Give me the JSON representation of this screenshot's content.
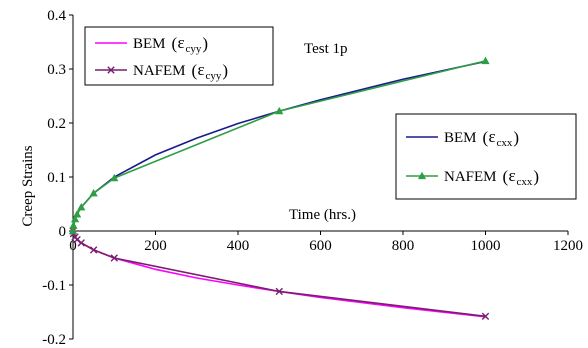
{
  "chart_data": {
    "type": "line",
    "title": "",
    "annotation": "Test 1p",
    "xlabel": "Time (hrs.)",
    "ylabel": "Creep Strains",
    "xlim": [
      0,
      1200
    ],
    "ylim": [
      -0.2,
      0.4
    ],
    "xticks": [
      0,
      200,
      400,
      600,
      800,
      1000,
      1200
    ],
    "yticks": [
      -0.2,
      -0.1,
      0,
      0.1,
      0.2,
      0.3,
      0.4
    ],
    "xtick_labels": [
      "0",
      "200",
      "400",
      "600",
      "800",
      "1000",
      "1200"
    ],
    "ytick_labels": [
      "-0.2",
      "-0.1",
      "0",
      "0.1",
      "0.2",
      "0.3",
      "0.4"
    ],
    "grid": false,
    "legends": [
      {
        "placement": "top-left",
        "entries": [
          {
            "series": 0,
            "name": "BEM",
            "symbol": "ε",
            "sub": "cyy"
          },
          {
            "series": 1,
            "name": "NAFEM",
            "symbol": "ε",
            "sub": "cyy"
          }
        ]
      },
      {
        "placement": "middle-right",
        "entries": [
          {
            "series": 2,
            "name": "BEM",
            "symbol": "ε",
            "sub": "cxx"
          },
          {
            "series": 3,
            "name": "NAFEM",
            "symbol": "ε",
            "sub": "cxx"
          }
        ]
      }
    ],
    "series": [
      {
        "color": "#ff00ff",
        "marker": "none",
        "x": [
          0,
          1,
          5,
          10,
          20,
          50,
          100,
          200,
          300,
          400,
          500,
          600,
          800,
          1000
        ],
        "y": [
          0,
          -0.005,
          -0.011,
          -0.016,
          -0.022,
          -0.035,
          -0.05,
          -0.071,
          -0.087,
          -0.1,
          -0.112,
          -0.123,
          -0.142,
          -0.159
        ]
      },
      {
        "color": "#7a1f6f",
        "marker": "x",
        "x": [
          0,
          1,
          5,
          10,
          20,
          50,
          100,
          500,
          1000
        ],
        "y": [
          0,
          -0.005,
          -0.011,
          -0.016,
          -0.022,
          -0.035,
          -0.05,
          -0.112,
          -0.158
        ]
      },
      {
        "color": "#1a1a8c",
        "marker": "none",
        "x": [
          0,
          1,
          5,
          10,
          20,
          50,
          100,
          200,
          300,
          400,
          500,
          600,
          800,
          1000
        ],
        "y": [
          0,
          0.01,
          0.022,
          0.031,
          0.044,
          0.07,
          0.1,
          0.141,
          0.172,
          0.199,
          0.222,
          0.243,
          0.281,
          0.314
        ]
      },
      {
        "color": "#2e9e45",
        "marker": "triangle",
        "x": [
          0,
          1,
          5,
          10,
          20,
          50,
          100,
          500,
          1000
        ],
        "y": [
          0,
          0.01,
          0.022,
          0.031,
          0.044,
          0.07,
          0.098,
          0.222,
          0.315
        ]
      }
    ]
  }
}
